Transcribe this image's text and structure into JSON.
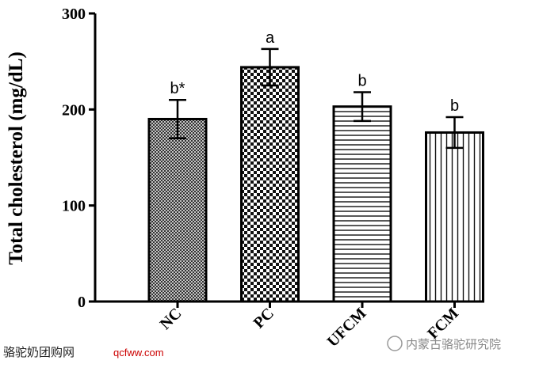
{
  "chart_data": {
    "type": "bar",
    "y_label": "Total cholesterol (mg/dL)",
    "categories": [
      "NC",
      "PC",
      "UFCM",
      "FCM"
    ],
    "values": [
      190,
      244,
      203,
      176
    ],
    "errors": [
      20,
      19,
      15,
      16
    ],
    "annotations": [
      "b*",
      "a",
      "b",
      "b"
    ],
    "ylim": [
      0,
      300
    ],
    "yticks": [
      0,
      100,
      200,
      300
    ]
  },
  "watermark": {
    "site_name": "骆驼奶团购网",
    "site_url": "qcfww.com",
    "account": "内蒙古骆驼研究院"
  }
}
